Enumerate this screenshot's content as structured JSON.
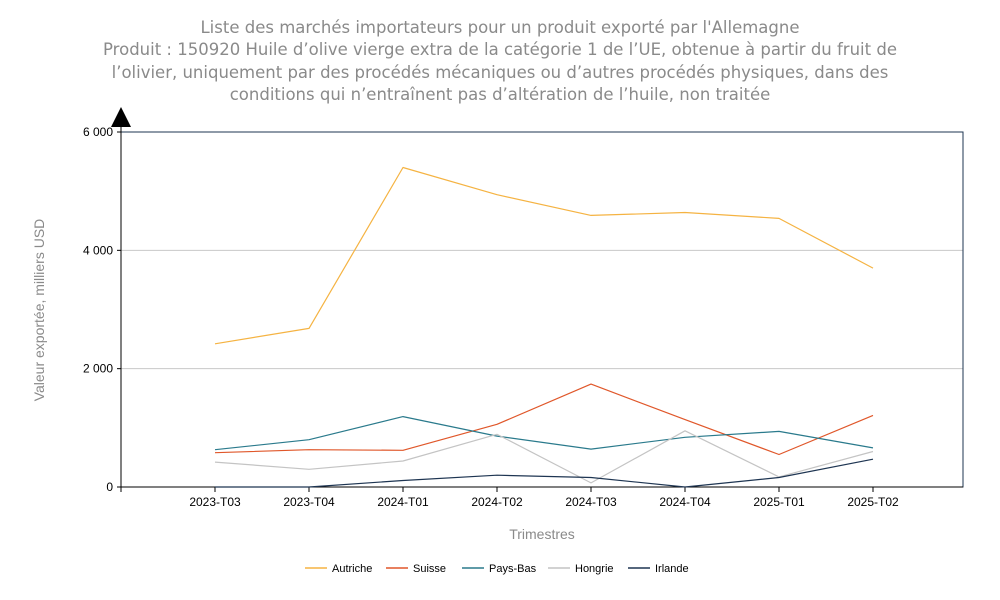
{
  "chart_data": {
    "type": "line",
    "title_lines": [
      "Liste des marchés importateurs pour un produit exporté par l'Allemagne",
      "Produit : 150920 Huile d’olive vierge extra de la catégorie 1 de l’UE, obtenue à partir du fruit de",
      "l’olivier, uniquement par des procédés mécaniques ou d’autres procédés physiques, dans des",
      "conditions qui n’entraînent pas d’altération de l’huile, non traitée"
    ],
    "xlabel": "Trimestres",
    "ylabel": "Valeur exportée, milliers USD",
    "categories": [
      "2023-T03",
      "2023-T04",
      "2024-T01",
      "2024-T02",
      "2024-T03",
      "2024-T04",
      "2025-T01",
      "2025-T02"
    ],
    "ylim": [
      0,
      6000
    ],
    "yticks": [
      0,
      2000,
      4000,
      6000
    ],
    "ytick_labels": [
      "0",
      "2 000",
      "4 000",
      "6 000"
    ],
    "grid": true,
    "legend_position": "bottom",
    "series": [
      {
        "name": "Autriche",
        "color": "#f5b342",
        "values": [
          2420,
          2680,
          5400,
          4940,
          4590,
          4640,
          4540,
          3700
        ]
      },
      {
        "name": "Suisse",
        "color": "#e0572a",
        "values": [
          580,
          630,
          620,
          1060,
          1740,
          1140,
          550,
          1210
        ]
      },
      {
        "name": "Pays-Bas",
        "color": "#2a7a8c",
        "values": [
          630,
          800,
          1190,
          860,
          640,
          840,
          940,
          660
        ]
      },
      {
        "name": "Hongrie",
        "color": "#c4c4c4",
        "values": [
          420,
          300,
          440,
          890,
          70,
          950,
          170,
          600
        ]
      },
      {
        "name": "Irlande",
        "color": "#1e3552",
        "values": [
          0,
          0,
          110,
          200,
          160,
          0,
          160,
          470
        ]
      }
    ]
  }
}
